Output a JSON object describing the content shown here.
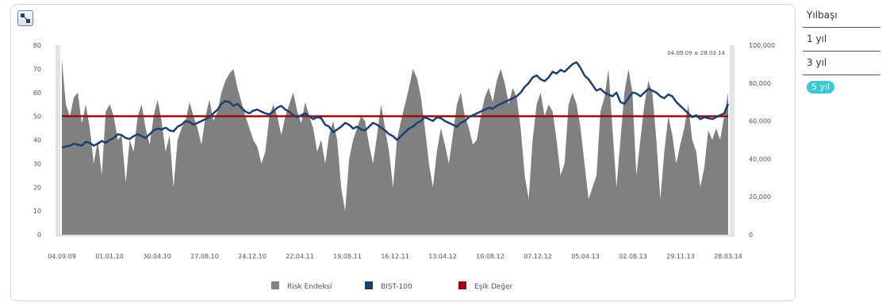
{
  "range_menu": {
    "items": [
      "Yılbaşı",
      "1 yıl",
      "3 yıl",
      "5 yıl"
    ],
    "active_index": 3,
    "active_color": "#39c9d8"
  },
  "chart_data": {
    "type": "area",
    "date_range_label": "04.09.09 ± 28.03.14",
    "x_ticks": [
      "04.09.09",
      "01.01.10",
      "30.04.10",
      "27.08.10",
      "24.12.10",
      "22.04.11",
      "19.08.11",
      "16.12.11",
      "13.04.12",
      "10.08.12",
      "07.12.12",
      "05.04.13",
      "02.08.13",
      "29.11.13",
      "28.03.14"
    ],
    "y_left": {
      "range": [
        0,
        80
      ],
      "ticks": [
        "0",
        "10",
        "20",
        "30",
        "40",
        "50",
        "60",
        "70",
        "80"
      ]
    },
    "y_right": {
      "range": [
        0,
        100000
      ],
      "ticks": [
        "0",
        "20,000",
        "40,000",
        "60,000",
        "80,000",
        "100,000"
      ]
    },
    "grid": false,
    "legend_position": "bottom",
    "series": [
      {
        "name": "Risk Endeksi",
        "type": "area",
        "axis": "left",
        "color": "#808080",
        "values": [
          74,
          55,
          50,
          58,
          60,
          47,
          55,
          45,
          30,
          40,
          25,
          52,
          55,
          50,
          40,
          42,
          22,
          40,
          35,
          50,
          55,
          45,
          38,
          50,
          57,
          48,
          35,
          42,
          20,
          40,
          45,
          48,
          56,
          50,
          45,
          38,
          50,
          57,
          48,
          52,
          60,
          65,
          68,
          70,
          62,
          56,
          50,
          45,
          40,
          37,
          30,
          35,
          50,
          55,
          50,
          42,
          50,
          55,
          60,
          52,
          47,
          56,
          50,
          45,
          35,
          40,
          30,
          42,
          48,
          40,
          20,
          10,
          32,
          40,
          45,
          50,
          48,
          38,
          30,
          42,
          55,
          45,
          35,
          20,
          40,
          48,
          55,
          62,
          70,
          66,
          58,
          45,
          30,
          20,
          35,
          45,
          38,
          30,
          42,
          55,
          60,
          50,
          45,
          38,
          40,
          50,
          58,
          62,
          56,
          65,
          70,
          64,
          55,
          62,
          58,
          45,
          25,
          15,
          40,
          55,
          60,
          50,
          55,
          52,
          40,
          25,
          30,
          55,
          60,
          55,
          45,
          30,
          15,
          20,
          25,
          52,
          58,
          70,
          45,
          20,
          40,
          60,
          70,
          60,
          25,
          40,
          55,
          65,
          60,
          40,
          15,
          35,
          50,
          42,
          30,
          38,
          45,
          55,
          40,
          35,
          20,
          28,
          44,
          40,
          45,
          40,
          50,
          60
        ]
      },
      {
        "name": "BIST-100",
        "type": "line",
        "axis": "right",
        "color": "#1c3f6e",
        "values": [
          46000,
          46500,
          47000,
          48000,
          47500,
          47000,
          49000,
          48500,
          47000,
          48000,
          49500,
          48500,
          50000,
          51000,
          53000,
          52500,
          51000,
          50500,
          52000,
          53000,
          52000,
          51000,
          53000,
          55000,
          56000,
          55500,
          56500,
          55000,
          54500,
          57000,
          58000,
          60000,
          59500,
          58000,
          59000,
          60000,
          61000,
          62000,
          64000,
          66000,
          69000,
          70500,
          70000,
          68000,
          69000,
          67000,
          65000,
          64000,
          65500,
          66000,
          65000,
          64000,
          63500,
          65000,
          67000,
          68000,
          66000,
          65000,
          63000,
          62000,
          63000,
          64000,
          62500,
          61000,
          62000,
          61500,
          58000,
          57000,
          54000,
          55500,
          57000,
          59000,
          58000,
          56000,
          57000,
          55500,
          55000,
          57000,
          59000,
          58000,
          56500,
          55000,
          53000,
          52000,
          50000,
          52000,
          54000,
          56000,
          57000,
          59000,
          60000,
          62000,
          61000,
          60000,
          62000,
          61500,
          60000,
          59000,
          58000,
          57000,
          59000,
          60000,
          62000,
          63000,
          64000,
          65000,
          66000,
          67000,
          66500,
          68000,
          69000,
          70000,
          71000,
          72000,
          73000,
          75000,
          78000,
          80000,
          83000,
          84000,
          82000,
          81000,
          83000,
          86000,
          85000,
          87000,
          86000,
          88000,
          90000,
          91000,
          88000,
          84000,
          82000,
          79000,
          76000,
          77000,
          75000,
          74000,
          73000,
          75000,
          70000,
          69000,
          72000,
          75000,
          74500,
          73000,
          75000,
          77000,
          76000,
          75000,
          73000,
          72000,
          74000,
          73000,
          70000,
          68000,
          66000,
          64000,
          62000,
          63000,
          61000,
          62000,
          61500,
          61000,
          62000,
          63000,
          64000,
          69000
        ]
      },
      {
        "name": "Eşik Değer",
        "type": "line",
        "axis": "left",
        "color": "#9b0b0b",
        "values": [
          50,
          50
        ]
      }
    ]
  }
}
